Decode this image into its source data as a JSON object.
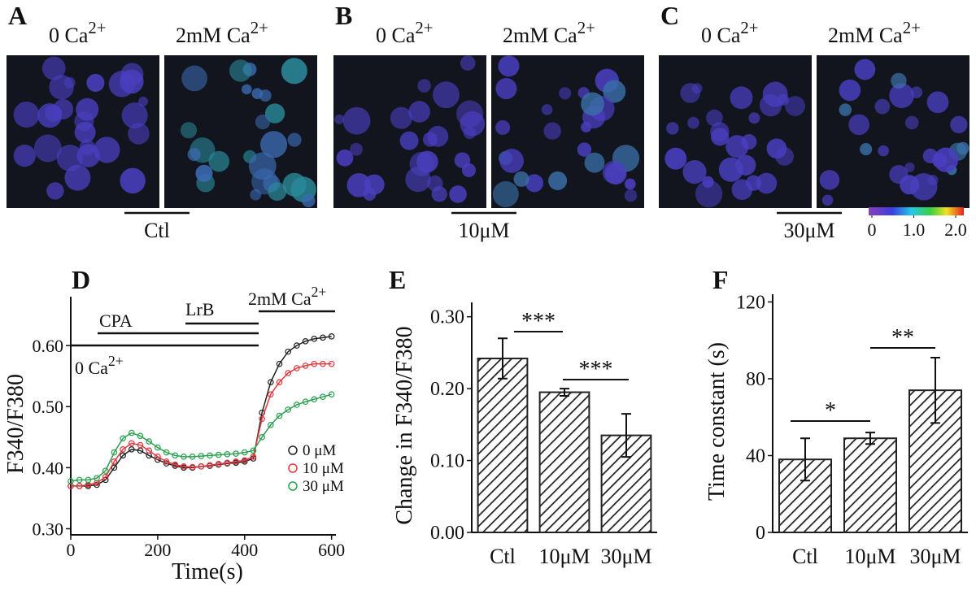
{
  "image_panels": [
    {
      "letter": "A",
      "before": {
        "text": "0 Ca",
        "sup": "2+"
      },
      "after": {
        "text": "2mM Ca",
        "sup": "2+"
      },
      "condition": "Ctl"
    },
    {
      "letter": "B",
      "before": {
        "text": "0 Ca",
        "sup": "2+"
      },
      "after": {
        "text": "2mM Ca",
        "sup": "2+"
      },
      "condition": "10μM"
    },
    {
      "letter": "C",
      "before": {
        "text": "0 Ca",
        "sup": "2+"
      },
      "after": {
        "text": "2mM Ca",
        "sup": "2+"
      },
      "condition": "30μM"
    }
  ],
  "colorbar": {
    "range": [
      0,
      2
    ],
    "ticks": [
      0,
      {
        "value": 1,
        "label": "1.0"
      },
      {
        "value": 2,
        "label": "2.0"
      }
    ]
  },
  "chart_data": [
    {
      "type": "line",
      "letter": "D",
      "xlabel": "Time(s)",
      "ylabel": "F340/F380",
      "annotations": [
        {
          "text": "CPA"
        },
        {
          "text": "LrB"
        },
        {
          "text": "2mM Ca",
          "sup": "2+"
        },
        {
          "text": "0 Ca",
          "sup": "2+"
        }
      ],
      "x": [
        0,
        20,
        40,
        60,
        80,
        100,
        120,
        140,
        160,
        180,
        200,
        220,
        240,
        260,
        280,
        300,
        320,
        340,
        360,
        380,
        400,
        420,
        440,
        460,
        480,
        500,
        520,
        540,
        560,
        580,
        600
      ],
      "series": [
        {
          "name": "0 μM",
          "color": "#222222",
          "values": [
            0.37,
            0.37,
            0.37,
            0.372,
            0.38,
            0.4,
            0.42,
            0.43,
            0.428,
            0.42,
            0.413,
            0.407,
            0.403,
            0.4,
            0.4,
            0.402,
            0.403,
            0.405,
            0.407,
            0.408,
            0.41,
            0.415,
            0.49,
            0.54,
            0.57,
            0.59,
            0.6,
            0.607,
            0.611,
            0.613,
            0.615
          ]
        },
        {
          "name": "10 μM",
          "color": "#e0383e",
          "values": [
            0.37,
            0.37,
            0.372,
            0.375,
            0.385,
            0.41,
            0.43,
            0.44,
            0.437,
            0.428,
            0.418,
            0.41,
            0.405,
            0.402,
            0.401,
            0.402,
            0.404,
            0.406,
            0.408,
            0.41,
            0.412,
            0.418,
            0.48,
            0.52,
            0.54,
            0.555,
            0.563,
            0.567,
            0.57,
            0.57,
            0.57
          ]
        },
        {
          "name": "30 μM",
          "color": "#2aa050",
          "values": [
            0.378,
            0.38,
            0.38,
            0.383,
            0.395,
            0.425,
            0.448,
            0.457,
            0.452,
            0.443,
            0.433,
            0.425,
            0.42,
            0.418,
            0.418,
            0.419,
            0.42,
            0.421,
            0.422,
            0.423,
            0.425,
            0.428,
            0.45,
            0.47,
            0.485,
            0.495,
            0.503,
            0.508,
            0.512,
            0.516,
            0.52
          ]
        }
      ],
      "xlim": [
        0,
        610
      ],
      "xticks": [
        0,
        200,
        400,
        600
      ],
      "ylim": [
        0.29,
        0.68
      ],
      "yticks": [
        {
          "value": 0.3,
          "label": "0.30"
        },
        {
          "value": 0.4,
          "label": "0.40"
        },
        {
          "value": 0.5,
          "label": "0.50"
        },
        {
          "value": 0.6,
          "label": "0.60"
        }
      ]
    },
    {
      "type": "bar",
      "letter": "E",
      "ylabel": "Change in F340/F380",
      "categories": [
        "Ctl",
        "10μM",
        "30μM"
      ],
      "values": [
        0.242,
        0.195,
        0.135
      ],
      "errors": [
        0.028,
        0.005,
        0.03
      ],
      "color": "#222222",
      "hatch": true,
      "annotations": [
        "***",
        "***"
      ],
      "ylim": [
        0,
        0.32
      ],
      "yticks": [
        {
          "value": 0,
          "label": "0.00"
        },
        {
          "value": 0.1,
          "label": "0.10"
        },
        {
          "value": 0.2,
          "label": "0.20"
        },
        {
          "value": 0.3,
          "label": "0.30"
        }
      ]
    },
    {
      "type": "bar",
      "letter": "F",
      "ylabel": "Time constant (s)",
      "categories": [
        "Ctl",
        "10μM",
        "30μM"
      ],
      "values": [
        38,
        49,
        74
      ],
      "errors": [
        11,
        3,
        17
      ],
      "color": "#222222",
      "hatch": true,
      "annotations": [
        "*",
        "**"
      ],
      "ylim": [
        0,
        124
      ],
      "yticks": [
        0,
        40,
        80,
        120
      ]
    }
  ]
}
